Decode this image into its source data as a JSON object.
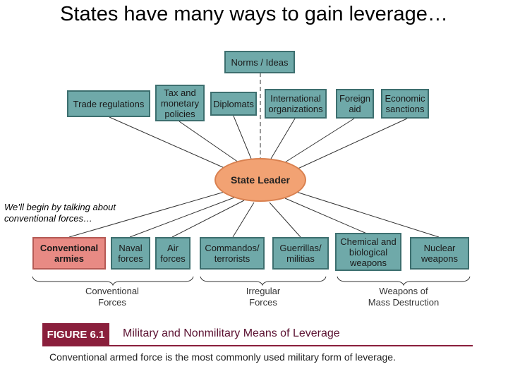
{
  "slide": {
    "title": "States have many ways to gain leverage…",
    "note": "We’ll begin by talking about\nconventional forces…"
  },
  "diagram": {
    "top_box": "Norms / Ideas",
    "center": "State Leader",
    "nonmilitary": [
      "Trade regulations",
      "Tax and\nmonetary\npolicies",
      "Diplomats",
      "International\norganizations",
      "Foreign\naid",
      "Economic\nsanctions"
    ],
    "military": [
      "Conventional\narmies",
      "Naval\nforces",
      "Air\nforces",
      "Commandos/\nterrorists",
      "Guerrillas/\nmilitias",
      "Chemical and\nbiological\nweapons",
      "Nuclear\nweapons"
    ],
    "categories": [
      "Conventional\nForces",
      "Irregular\nForces",
      "Weapons of\nMass Destruction"
    ],
    "colors": {
      "box_fill": "#6fa9a9",
      "box_border": "#3d6f6f",
      "highlight_fill": "#e88a84",
      "center_fill": "#f2a273",
      "figure_accent": "#8a1f3c"
    }
  },
  "figure": {
    "label": "FIGURE 6.1",
    "title": "Military and Nonmilitary Means of Leverage",
    "caption": "Conventional armed force is the most commonly used military form of leverage."
  }
}
